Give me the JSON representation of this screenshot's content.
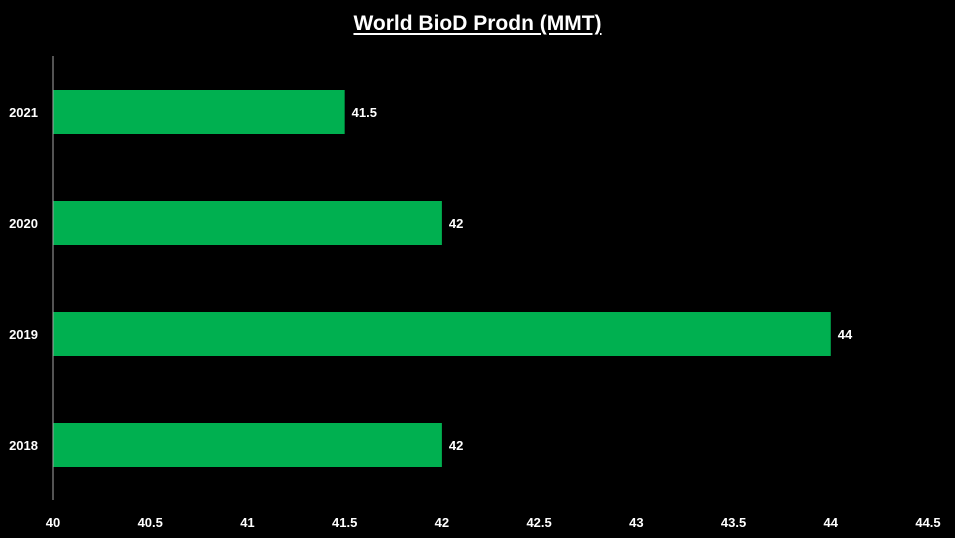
{
  "chart_data": {
    "type": "bar",
    "orientation": "horizontal",
    "title": "World BioD Prodn (MMT)",
    "xlabel": "",
    "ylabel": "",
    "categories": [
      "2021",
      "2020",
      "2019",
      "2018"
    ],
    "values": [
      41.5,
      42,
      44,
      42
    ],
    "data_labels": [
      "41.5",
      "42",
      "44",
      "42"
    ],
    "xlim": [
      40,
      44.5
    ],
    "x_ticks": [
      40,
      40.5,
      41,
      41.5,
      42,
      42.5,
      43,
      43.5,
      44,
      44.5
    ],
    "x_tick_labels": [
      "40",
      "40.5",
      "41",
      "41.5",
      "42",
      "42.5",
      "43",
      "43.5",
      "44",
      "44.5"
    ],
    "grid": false,
    "legend": "none",
    "colors": {
      "bar": "#00b050",
      "background": "#000000",
      "text": "#ffffff",
      "axis": "#a6a6a6"
    }
  }
}
